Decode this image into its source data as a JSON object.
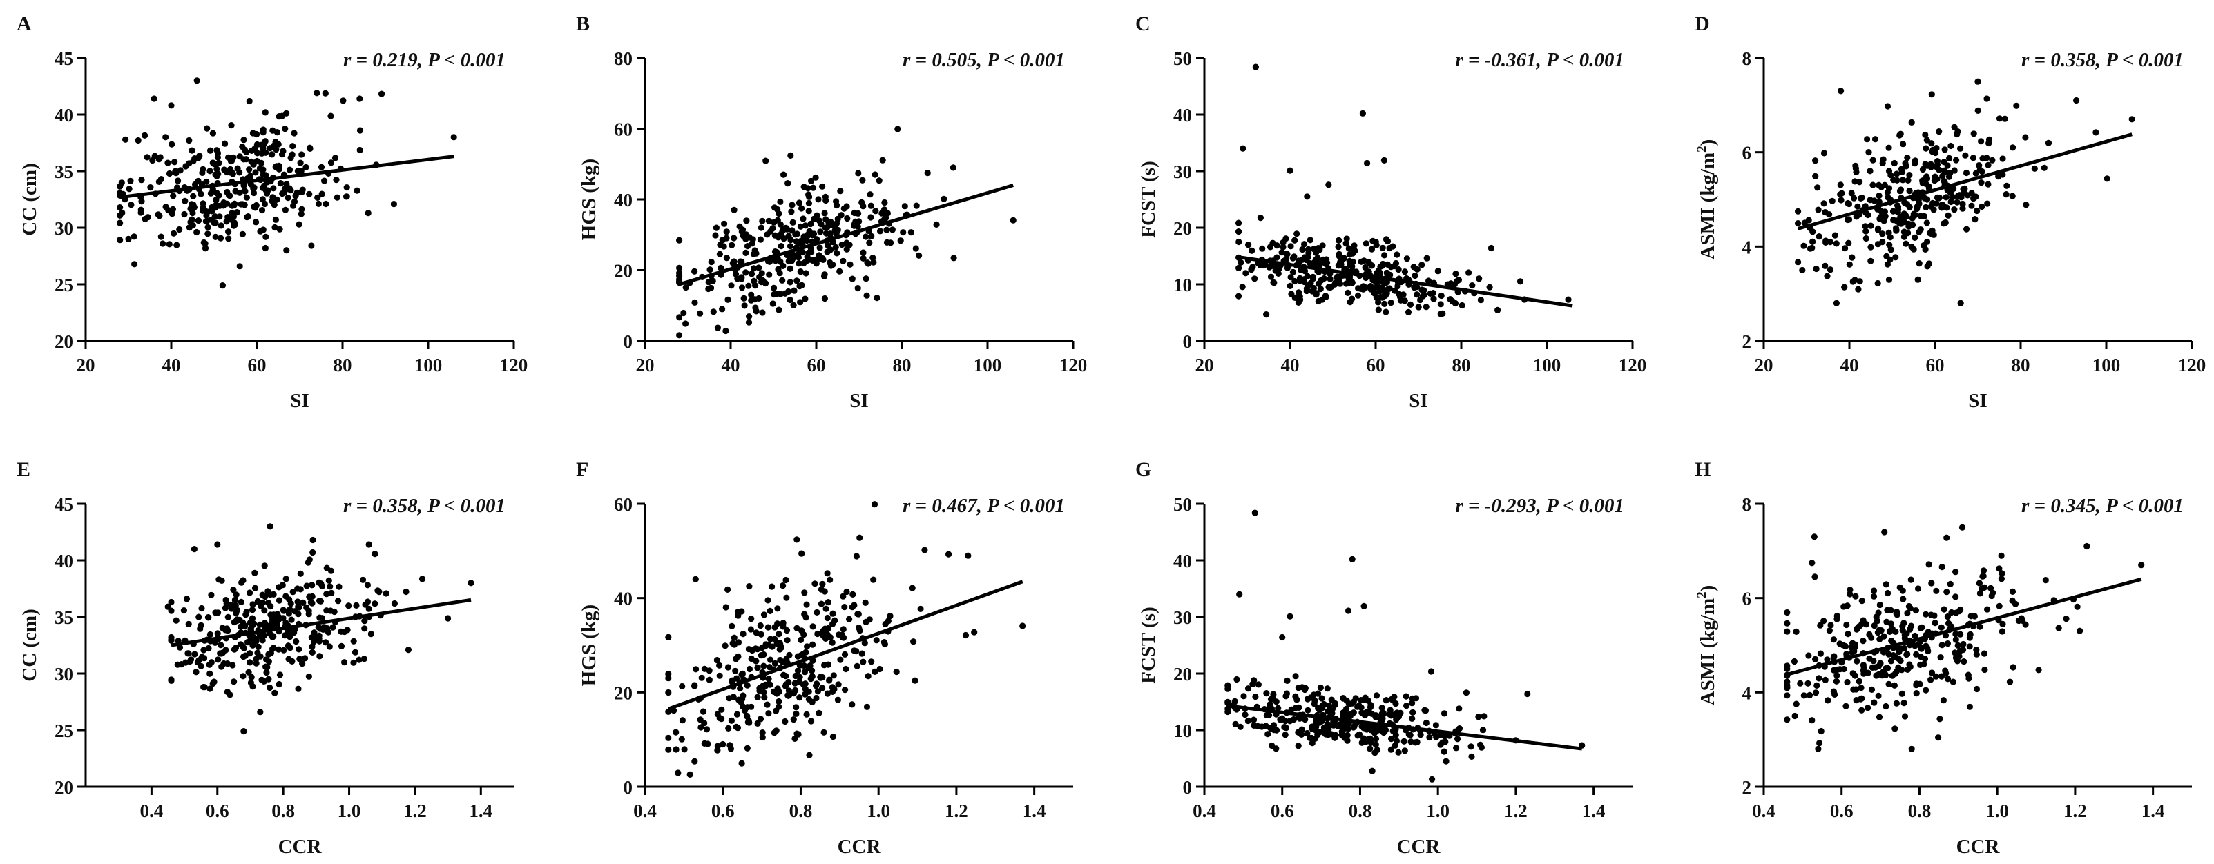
{
  "figure": {
    "dot_color": "#000000",
    "line_color": "#000000",
    "axis_color": "#000000"
  },
  "chart_data": [
    {
      "panel": "A",
      "type": "scatter",
      "xlabel": "SI",
      "ylabel": "CC (cm)",
      "xlim": [
        20,
        120
      ],
      "ylim": [
        20,
        45
      ],
      "xticks": [
        "20",
        "40",
        "60",
        "80",
        "100",
        "120"
      ],
      "yticks": [
        "20",
        "25",
        "30",
        "35",
        "40",
        "45"
      ],
      "annotation": "r = 0.219, P < 0.001",
      "fit": {
        "x": [
          28,
          106
        ],
        "y": [
          32.7,
          36.3
        ]
      },
      "highlights": [
        [
          46,
          43.0
        ],
        [
          36,
          41.4
        ],
        [
          40,
          40.8
        ],
        [
          74,
          41.9
        ],
        [
          84,
          41.4
        ],
        [
          106,
          38.0
        ],
        [
          52,
          24.9
        ],
        [
          56,
          26.6
        ],
        [
          38,
          28.6
        ],
        [
          62,
          28.2
        ],
        [
          30,
          29.0
        ],
        [
          92,
          32.1
        ],
        [
          86,
          31.3
        ]
      ],
      "n_random": 340,
      "x_mean": 54,
      "x_sd": 13,
      "x_min": 28,
      "x_max": 103,
      "noise_sd": 2.6
    },
    {
      "panel": "B",
      "type": "scatter",
      "xlabel": "SI",
      "ylabel": "HGS (kg)",
      "xlim": [
        20,
        120
      ],
      "ylim": [
        0,
        80
      ],
      "xticks": [
        "20",
        "40",
        "60",
        "80",
        "100",
        "120"
      ],
      "yticks": [
        "0",
        "20",
        "40",
        "60",
        "80"
      ],
      "annotation": "r = 0.505, P < 0.001",
      "fit": {
        "x": [
          28,
          106
        ],
        "y": [
          16.0,
          44.0
        ]
      },
      "highlights": [
        [
          79,
          59.9
        ],
        [
          54,
          52.4
        ],
        [
          106,
          34.1
        ],
        [
          29,
          7.9
        ],
        [
          38,
          9.0
        ],
        [
          46,
          8.4
        ],
        [
          92,
          49.0
        ],
        [
          86,
          47.5
        ],
        [
          62,
          12.0
        ]
      ],
      "n_random": 340,
      "x_mean": 54,
      "x_sd": 13,
      "x_min": 28,
      "x_max": 103,
      "noise_sd": 7.5
    },
    {
      "panel": "C",
      "type": "scatter",
      "xlabel": "SI",
      "ylabel": "FCST (s)",
      "xlim": [
        20,
        120
      ],
      "ylim": [
        0,
        50
      ],
      "xticks": [
        "20",
        "40",
        "60",
        "80",
        "100",
        "120"
      ],
      "yticks": [
        "0",
        "10",
        "20",
        "30",
        "40",
        "50"
      ],
      "annotation": "r = -0.361, P < 0.001",
      "fit": {
        "x": [
          28,
          106
        ],
        "y": [
          14.8,
          6.2
        ]
      },
      "highlights": [
        [
          32,
          48.4
        ],
        [
          57,
          40.2
        ],
        [
          29,
          34.0
        ],
        [
          58,
          31.4
        ],
        [
          62,
          31.9
        ],
        [
          40,
          30.1
        ],
        [
          44,
          25.5
        ],
        [
          49,
          27.6
        ],
        [
          87,
          16.4
        ],
        [
          105,
          7.3
        ]
      ],
      "n_random": 340,
      "x_mean": 54,
      "x_sd": 13,
      "x_min": 28,
      "x_max": 103,
      "noise_sd": 2.7
    },
    {
      "panel": "D",
      "type": "scatter",
      "xlabel": "SI",
      "ylabel": "ASMI (kg/m²)",
      "ylabel_parts": [
        "ASMI (kg/m",
        "2",
        ")"
      ],
      "xlim": [
        20,
        120
      ],
      "ylim": [
        2,
        8
      ],
      "xticks": [
        "20",
        "40",
        "60",
        "80",
        "100",
        "120"
      ],
      "yticks": [
        "2",
        "4",
        "6",
        "8"
      ],
      "annotation": "r = 0.358, P < 0.001",
      "fit": {
        "x": [
          28,
          106
        ],
        "y": [
          4.38,
          6.38
        ]
      },
      "highlights": [
        [
          38,
          7.3
        ],
        [
          70,
          7.5
        ],
        [
          93,
          7.1
        ],
        [
          106,
          6.7
        ],
        [
          37,
          2.8
        ],
        [
          66,
          2.8
        ],
        [
          29,
          3.5
        ],
        [
          56,
          3.3
        ]
      ],
      "n_random": 340,
      "x_mean": 54,
      "x_sd": 13,
      "x_min": 28,
      "x_max": 103,
      "noise_sd": 0.7
    },
    {
      "panel": "E",
      "type": "scatter",
      "xlabel": "CCR",
      "ylabel": "CC (cm)",
      "xlim": [
        0.2,
        1.5
      ],
      "ylim": [
        20,
        45
      ],
      "xticks": [
        "0.4",
        "0.6",
        "0.8",
        "1.0",
        "1.2",
        "1.4"
      ],
      "yticks": [
        "20",
        "25",
        "30",
        "35",
        "40",
        "45"
      ],
      "annotation": "r = 0.358, P < 0.001",
      "fit": {
        "x": [
          0.46,
          1.37
        ],
        "y": [
          32.5,
          36.5
        ]
      },
      "highlights": [
        [
          0.76,
          43.0
        ],
        [
          0.53,
          41.0
        ],
        [
          0.6,
          41.4
        ],
        [
          0.89,
          41.8
        ],
        [
          1.06,
          41.4
        ],
        [
          1.37,
          38.0
        ],
        [
          0.68,
          24.9
        ],
        [
          0.73,
          26.6
        ],
        [
          0.45,
          35.9
        ],
        [
          1.18,
          32.1
        ]
      ],
      "n_random": 340,
      "x_mean": 0.76,
      "x_sd": 0.15,
      "x_min": 0.46,
      "x_max": 1.3,
      "noise_sd": 2.5
    },
    {
      "panel": "F",
      "type": "scatter",
      "xlabel": "CCR",
      "ylabel": "HGS (kg)",
      "xlim": [
        0.4,
        1.5
      ],
      "ylim": [
        0,
        60
      ],
      "xticks": [
        "0.4",
        "0.6",
        "0.8",
        "1.0",
        "1.2",
        "1.4"
      ],
      "yticks": [
        "0",
        "20",
        "40",
        "60"
      ],
      "annotation": "r = 0.467, P < 0.001",
      "fit": {
        "x": [
          0.46,
          1.37
        ],
        "y": [
          16.5,
          43.5
        ]
      },
      "highlights": [
        [
          0.99,
          59.9
        ],
        [
          0.79,
          52.4
        ],
        [
          1.37,
          34.1
        ],
        [
          0.48,
          7.9
        ],
        [
          0.53,
          44.0
        ],
        [
          1.23,
          49.0
        ],
        [
          1.18,
          49.3
        ],
        [
          0.6,
          9.0
        ]
      ],
      "n_random": 340,
      "x_mean": 0.76,
      "x_sd": 0.15,
      "x_min": 0.46,
      "x_max": 1.3,
      "noise_sd": 7.8
    },
    {
      "panel": "G",
      "type": "scatter",
      "xlabel": "CCR",
      "ylabel": "FCST (s)",
      "xlim": [
        0.4,
        1.5
      ],
      "ylim": [
        0,
        50
      ],
      "xticks": [
        "0.4",
        "0.6",
        "0.8",
        "1.0",
        "1.2",
        "1.4"
      ],
      "yticks": [
        "0",
        "10",
        "20",
        "30",
        "40",
        "50"
      ],
      "annotation": "r = -0.293, P < 0.001",
      "fit": {
        "x": [
          0.46,
          1.37
        ],
        "y": [
          14.3,
          6.7
        ]
      },
      "highlights": [
        [
          0.53,
          48.4
        ],
        [
          0.78,
          40.2
        ],
        [
          0.49,
          34.0
        ],
        [
          0.77,
          31.1
        ],
        [
          0.81,
          31.9
        ],
        [
          0.62,
          30.1
        ],
        [
          0.6,
          26.4
        ],
        [
          1.23,
          16.4
        ],
        [
          1.37,
          7.3
        ],
        [
          1.2,
          8.2
        ]
      ],
      "n_random": 340,
      "x_mean": 0.76,
      "x_sd": 0.15,
      "x_min": 0.46,
      "x_max": 1.3,
      "noise_sd": 2.8
    },
    {
      "panel": "H",
      "type": "scatter",
      "xlabel": "CCR",
      "ylabel": "ASMI (kg/m²)",
      "ylabel_parts": [
        "ASMI (kg/m",
        "2",
        ")"
      ],
      "xlim": [
        0.4,
        1.5
      ],
      "ylim": [
        2,
        8
      ],
      "xticks": [
        "0.4",
        "0.6",
        "0.8",
        "1.0",
        "1.2",
        "1.4"
      ],
      "yticks": [
        "2",
        "4",
        "6",
        "8"
      ],
      "annotation": "r = 0.345, P < 0.001",
      "fit": {
        "x": [
          0.46,
          1.37
        ],
        "y": [
          4.38,
          6.4
        ]
      },
      "highlights": [
        [
          0.53,
          7.3
        ],
        [
          0.71,
          7.4
        ],
        [
          0.91,
          7.5
        ],
        [
          1.23,
          7.1
        ],
        [
          1.37,
          6.7
        ],
        [
          0.54,
          2.8
        ],
        [
          0.78,
          2.8
        ],
        [
          0.48,
          3.5
        ]
      ],
      "n_random": 340,
      "x_mean": 0.76,
      "x_sd": 0.15,
      "x_min": 0.46,
      "x_max": 1.3,
      "noise_sd": 0.7
    }
  ]
}
